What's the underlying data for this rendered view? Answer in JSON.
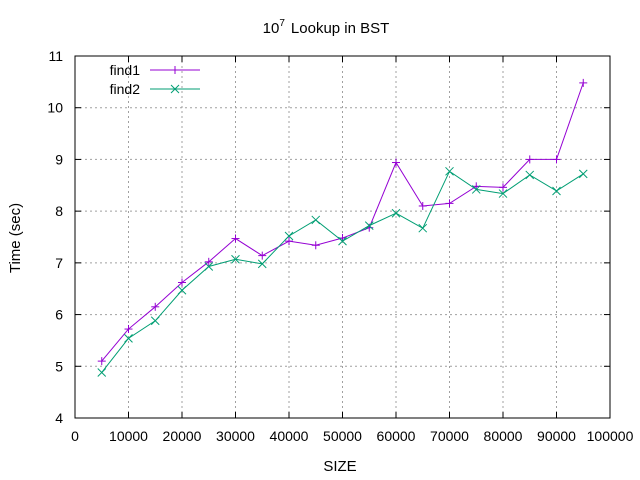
{
  "chart_data": {
    "type": "line",
    "title": "10",
    "title_superscript": "7",
    "title_suffix": "Lookup in BST",
    "xlabel": "SIZE",
    "ylabel": "Time (sec)",
    "xlim": [
      0,
      100000
    ],
    "ylim": [
      4,
      11
    ],
    "xticks": [
      0,
      10000,
      20000,
      30000,
      40000,
      50000,
      60000,
      70000,
      80000,
      90000,
      100000
    ],
    "yticks": [
      4,
      5,
      6,
      7,
      8,
      9,
      10,
      11
    ],
    "grid": true,
    "legend_position": "top-left",
    "x": [
      5000,
      10000,
      15000,
      20000,
      25000,
      30000,
      35000,
      40000,
      45000,
      50000,
      55000,
      60000,
      65000,
      70000,
      75000,
      80000,
      85000,
      90000,
      95000
    ],
    "series": [
      {
        "name": "find1",
        "color": "#9400d3",
        "marker": "plus",
        "values": [
          5.1,
          5.72,
          6.15,
          6.62,
          7.02,
          7.47,
          7.14,
          7.42,
          7.34,
          7.48,
          7.68,
          8.94,
          8.1,
          8.15,
          8.48,
          8.46,
          9.0,
          9.0,
          10.48
        ]
      },
      {
        "name": "find2",
        "color": "#009e73",
        "marker": "cross",
        "values": [
          4.88,
          5.54,
          5.88,
          6.47,
          6.93,
          7.07,
          6.98,
          7.52,
          7.83,
          7.42,
          7.72,
          7.96,
          7.67,
          8.77,
          8.42,
          8.34,
          8.7,
          8.39,
          8.72
        ]
      }
    ]
  }
}
